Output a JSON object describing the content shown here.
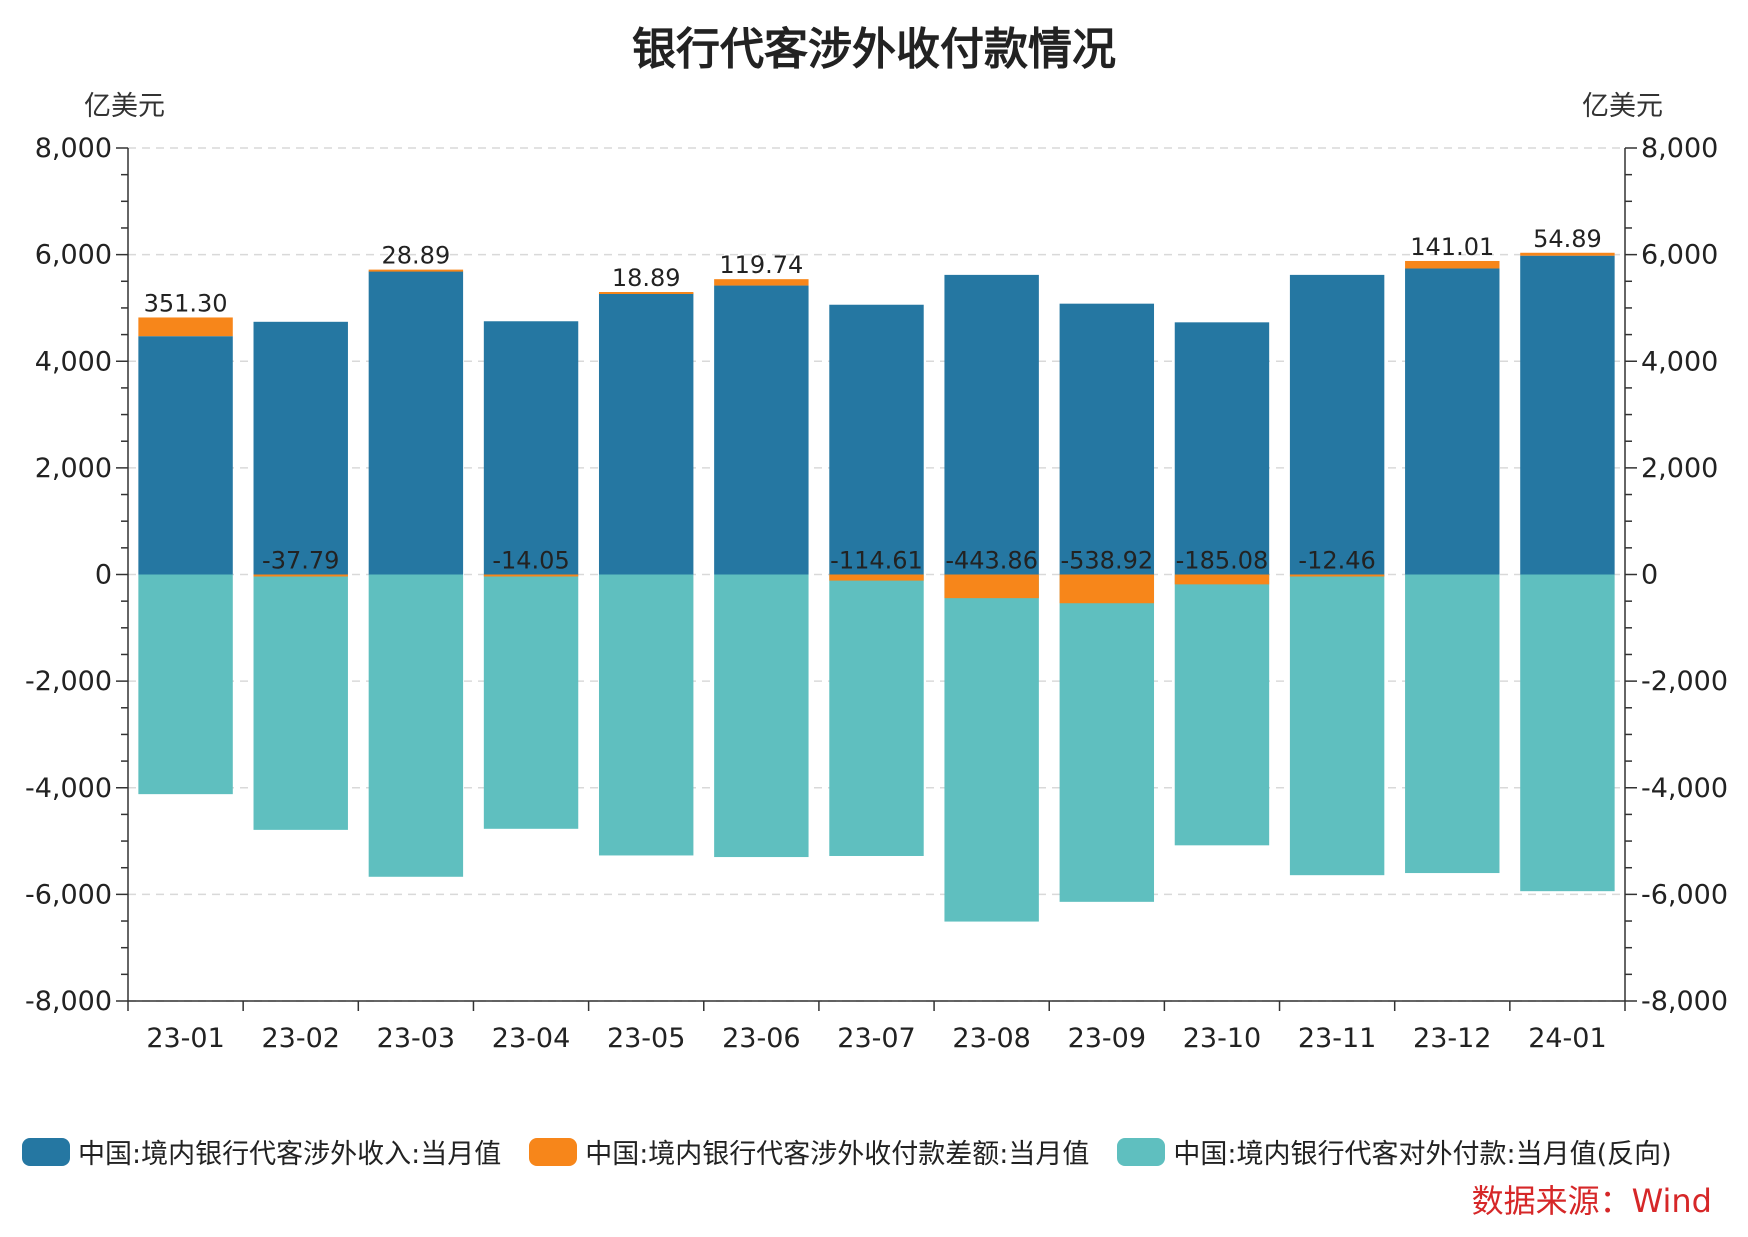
{
  "chart_data": {
    "type": "bar",
    "title": "银行代客涉外收付款情况",
    "ylabel_left": "亿美元",
    "ylabel_right": "亿美元",
    "ylim": [
      -8000,
      8000
    ],
    "yticks": [
      8000,
      6000,
      4000,
      2000,
      0,
      -2000,
      -4000,
      -6000,
      -8000
    ],
    "ytick_labels": [
      "8,000",
      "6,000",
      "4,000",
      "2,000",
      "0",
      "-2,000",
      "-4,000",
      "-6,000",
      "-8,000"
    ],
    "grid": true,
    "legend_position": "bottom",
    "categories": [
      "23-01",
      "23-02",
      "23-03",
      "23-04",
      "23-05",
      "23-06",
      "23-07",
      "23-08",
      "23-09",
      "23-10",
      "23-11",
      "23-12",
      "24-01"
    ],
    "series": [
      {
        "name": "中国:境内银行代客涉外收入:当月值",
        "color": "#2577a2",
        "values": [
          4470,
          4740,
          5690,
          4750,
          5280,
          5420,
          5060,
          5620,
          5080,
          4730,
          5620,
          5740,
          5980
        ]
      },
      {
        "name": "中国:境内银行代客涉外收付款差额:当月值",
        "color": "#f7861a",
        "values": [
          351.3,
          -37.79,
          28.89,
          -14.05,
          18.89,
          119.74,
          -114.61,
          -443.86,
          -538.92,
          -185.08,
          -12.46,
          141.01,
          54.89
        ],
        "labels": [
          "351.30",
          "-37.79",
          "28.89",
          "-14.05",
          "18.89",
          "119.74",
          "-114.61",
          "-443.86",
          "-538.92",
          "-185.08",
          "-12.46",
          "141.01",
          "54.89"
        ]
      },
      {
        "name": "中国:境内银行代客对外付款:当月值(反向)",
        "color": "#5fbfbf",
        "values": [
          -4120,
          -4790,
          -5670,
          -4770,
          -5270,
          -5300,
          -5280,
          -6510,
          -6140,
          -5080,
          -5640,
          -5600,
          -5940
        ]
      }
    ],
    "source": "数据来源：Wind"
  }
}
